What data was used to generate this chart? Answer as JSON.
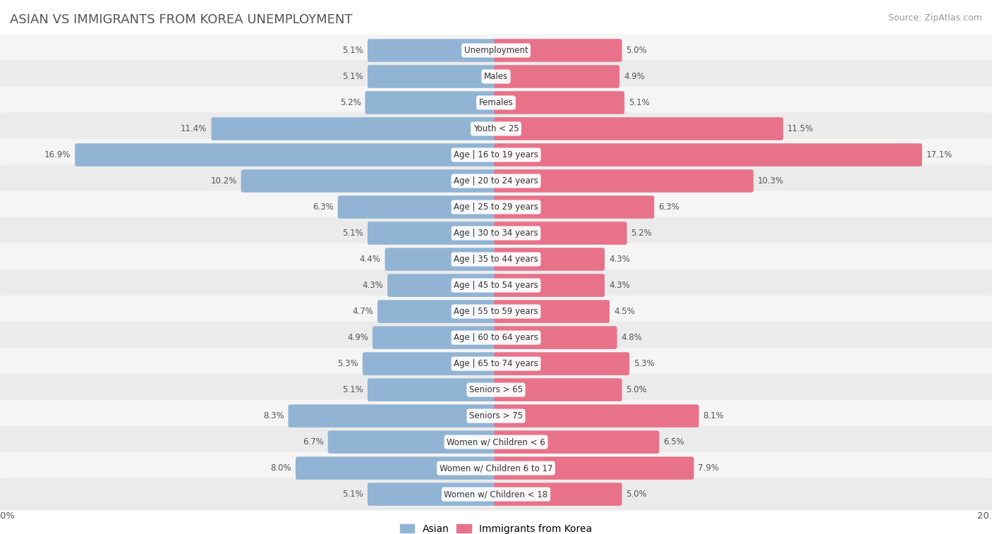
{
  "title": "ASIAN VS IMMIGRANTS FROM KOREA UNEMPLOYMENT",
  "source": "Source: ZipAtlas.com",
  "categories": [
    "Unemployment",
    "Males",
    "Females",
    "Youth < 25",
    "Age | 16 to 19 years",
    "Age | 20 to 24 years",
    "Age | 25 to 29 years",
    "Age | 30 to 34 years",
    "Age | 35 to 44 years",
    "Age | 45 to 54 years",
    "Age | 55 to 59 years",
    "Age | 60 to 64 years",
    "Age | 65 to 74 years",
    "Seniors > 65",
    "Seniors > 75",
    "Women w/ Children < 6",
    "Women w/ Children 6 to 17",
    "Women w/ Children < 18"
  ],
  "asian_values": [
    5.1,
    5.1,
    5.2,
    11.4,
    16.9,
    10.2,
    6.3,
    5.1,
    4.4,
    4.3,
    4.7,
    4.9,
    5.3,
    5.1,
    8.3,
    6.7,
    8.0,
    5.1
  ],
  "korea_values": [
    5.0,
    4.9,
    5.1,
    11.5,
    17.1,
    10.3,
    6.3,
    5.2,
    4.3,
    4.3,
    4.5,
    4.8,
    5.3,
    5.0,
    8.1,
    6.5,
    7.9,
    5.0
  ],
  "asian_color": "#92b4d4",
  "korea_color": "#e8728a",
  "x_max": 20.0,
  "legend_asian": "Asian",
  "legend_korea": "Immigrants from Korea",
  "row_colors": [
    "#f5f5f5",
    "#ebebeb"
  ],
  "label_bg": "white",
  "value_color": "#555555",
  "title_color": "#555555",
  "source_color": "#999999"
}
